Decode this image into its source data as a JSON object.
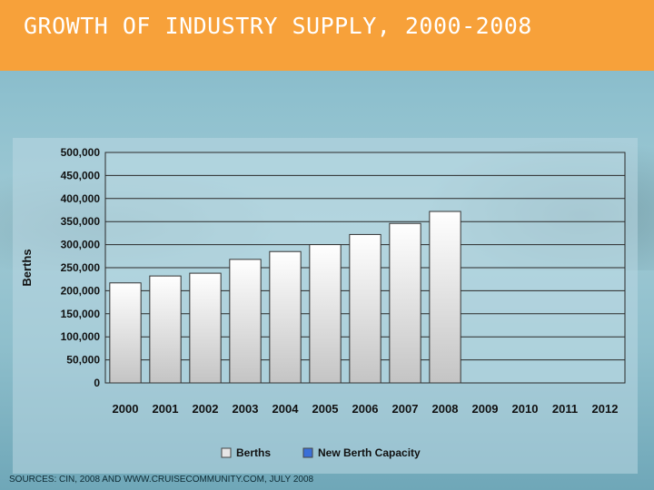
{
  "header": {
    "title": "GROWTH OF INDUSTRY SUPPLY, 2000-2008"
  },
  "footer": {
    "source": "SOURCES: CIN, 2008 AND WWW.CRUISECOMMUNITY.COM, JULY 2008"
  },
  "colors": {
    "header": "#f7a13a",
    "berths": "#e6e6e6",
    "new_capacity": "#3a6fd8"
  },
  "chart_data": {
    "type": "bar",
    "title": "",
    "xlabel": "",
    "ylabel": "Berths",
    "ylim": [
      0,
      500000
    ],
    "grid": true,
    "legend": "bottom",
    "categories": [
      "2000",
      "2001",
      "2002",
      "2003",
      "2004",
      "2005",
      "2006",
      "2007",
      "2008",
      "2009",
      "2010",
      "2011",
      "2012"
    ],
    "y_ticks": [
      {
        "value": 0,
        "label": "0"
      },
      {
        "value": 50000,
        "label": "50,000"
      },
      {
        "value": 100000,
        "label": "100,000"
      },
      {
        "value": 150000,
        "label": "150,000"
      },
      {
        "value": 200000,
        "label": "200,000"
      },
      {
        "value": 250000,
        "label": "250,000"
      },
      {
        "value": 300000,
        "label": "300,000"
      },
      {
        "value": 350000,
        "label": "350,000"
      },
      {
        "value": 400000,
        "label": "400,000"
      },
      {
        "value": 450000,
        "label": "450,000"
      },
      {
        "value": 500000,
        "label": "500,000"
      }
    ],
    "series": [
      {
        "name": "Berths",
        "values": [
          217000,
          232000,
          238000,
          268000,
          285000,
          300000,
          322000,
          346000,
          372000,
          null,
          null,
          null,
          null
        ]
      },
      {
        "name": "New Berth Capacity",
        "values": [
          null,
          null,
          null,
          null,
          null,
          null,
          null,
          null,
          null,
          null,
          null,
          null,
          null
        ]
      }
    ]
  }
}
